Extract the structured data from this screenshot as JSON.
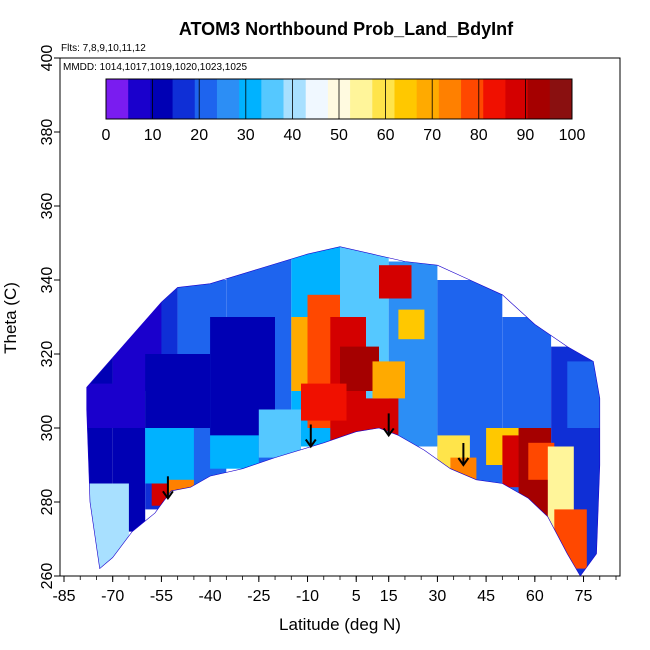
{
  "chart_data": {
    "type": "heatmap",
    "title": "ATOM3 Northbound Prob_Land_BdyInf",
    "subtitle_flights": "Flts: 7,8,9,10,11,12",
    "subtitle_dates": "MMDD: 1014,1017,1019,1020,1023,1025",
    "xlabel": "Latitude (deg N)",
    "ylabel": "Theta (C)",
    "xlim": [
      -85,
      85
    ],
    "ylim": [
      260,
      400
    ],
    "x_ticks": [
      -85,
      -70,
      -55,
      -40,
      -25,
      -10,
      5,
      15,
      30,
      45,
      60,
      75
    ],
    "x_tick_labels": [
      "-85",
      "-70",
      "-55",
      "-40",
      "-25",
      "-10",
      "5",
      "15",
      "30",
      "45",
      "60",
      "75"
    ],
    "y_ticks": [
      260,
      280,
      300,
      320,
      340,
      360,
      380,
      400
    ],
    "y_tick_labels": [
      "260",
      "280",
      "300",
      "320",
      "340",
      "360",
      "380",
      "400"
    ],
    "colorbar": {
      "range": [
        0,
        100
      ],
      "ticks": [
        0,
        10,
        20,
        30,
        40,
        50,
        60,
        70,
        80,
        90,
        100
      ],
      "tick_labels": [
        "0",
        "10",
        "20",
        "30",
        "40",
        "50",
        "60",
        "70",
        "80",
        "90",
        "100"
      ],
      "colors": [
        "#7a1cf0",
        "#1a00cc",
        "#0000b4",
        "#0f2fd6",
        "#1e64ee",
        "#2c8ef5",
        "#00b2ff",
        "#55c8ff",
        "#a8e0ff",
        "#f0f8ff",
        "#fffae0",
        "#fff59a",
        "#ffe44a",
        "#ffc800",
        "#ffaa00",
        "#ff8000",
        "#ff4800",
        "#f01000",
        "#d40000",
        "#a50000",
        "#8a1010"
      ]
    },
    "arrows": [
      {
        "lat": -53,
        "theta": 281
      },
      {
        "lat": -9,
        "theta": 295
      },
      {
        "lat": 15,
        "theta": 298
      },
      {
        "lat": 38,
        "theta": 290
      }
    ],
    "outline_top": [
      [
        -78,
        311
      ],
      [
        -72,
        317
      ],
      [
        -65,
        324
      ],
      [
        -55,
        334
      ],
      [
        -50,
        338
      ],
      [
        -40,
        339
      ],
      [
        -25,
        343
      ],
      [
        -10,
        347
      ],
      [
        0,
        349
      ],
      [
        10,
        347
      ],
      [
        20,
        345
      ],
      [
        30,
        344
      ],
      [
        40,
        340
      ],
      [
        50,
        336
      ],
      [
        60,
        328
      ],
      [
        70,
        322
      ],
      [
        78,
        318
      ],
      [
        80,
        308
      ]
    ],
    "outline_bottom": [
      [
        -78,
        305
      ],
      [
        -77,
        280
      ],
      [
        -74,
        262
      ],
      [
        -70,
        265
      ],
      [
        -64,
        272
      ],
      [
        -57,
        277
      ],
      [
        -52,
        283
      ],
      [
        -46,
        284
      ],
      [
        -40,
        287
      ],
      [
        -30,
        289
      ],
      [
        -20,
        292
      ],
      [
        -5,
        296
      ],
      [
        5,
        299
      ],
      [
        12,
        300
      ],
      [
        18,
        298
      ],
      [
        26,
        294
      ],
      [
        34,
        289
      ],
      [
        42,
        286
      ],
      [
        50,
        285
      ],
      [
        58,
        281
      ],
      [
        64,
        276
      ],
      [
        70,
        266
      ],
      [
        74,
        260
      ],
      [
        79,
        266
      ],
      [
        80,
        290
      ]
    ],
    "regions": [
      {
        "lat": [
          -78,
          -70
        ],
        "theta": [
          262,
          330
        ],
        "value": 12
      },
      {
        "lat": [
          -70,
          -60
        ],
        "theta": [
          272,
          336
        ],
        "value": 8
      },
      {
        "lat": [
          -60,
          -50
        ],
        "theta": [
          278,
          340
        ],
        "value": 14
      },
      {
        "lat": [
          -50,
          -35
        ],
        "theta": [
          284,
          340
        ],
        "value": 20
      },
      {
        "lat": [
          -35,
          -15
        ],
        "theta": [
          290,
          346
        ],
        "value": 18
      },
      {
        "lat": [
          -15,
          0
        ],
        "theta": [
          295,
          349
        ],
        "value": 28
      },
      {
        "lat": [
          0,
          15
        ],
        "theta": [
          298,
          349
        ],
        "value": 35
      },
      {
        "lat": [
          15,
          30
        ],
        "theta": [
          295,
          345
        ],
        "value": 25
      },
      {
        "lat": [
          30,
          50
        ],
        "theta": [
          285,
          340
        ],
        "value": 22
      },
      {
        "lat": [
          50,
          65
        ],
        "theta": [
          278,
          330
        ],
        "value": 18
      },
      {
        "lat": [
          65,
          80
        ],
        "theta": [
          260,
          322
        ],
        "value": 15
      },
      {
        "lat": [
          -78,
          -65
        ],
        "theta": [
          262,
          285
        ],
        "value": 38
      },
      {
        "lat": [
          -70,
          -55
        ],
        "theta": [
          310,
          336
        ],
        "value": 4
      },
      {
        "lat": [
          -78,
          -60
        ],
        "theta": [
          300,
          312
        ],
        "value": 6
      },
      {
        "lat": [
          -60,
          -40
        ],
        "theta": [
          300,
          320
        ],
        "value": 12
      },
      {
        "lat": [
          -40,
          -20
        ],
        "theta": [
          298,
          330
        ],
        "value": 10
      },
      {
        "lat": [
          -60,
          -45
        ],
        "theta": [
          285,
          300
        ],
        "value": 28
      },
      {
        "lat": [
          -58,
          -48
        ],
        "theta": [
          279,
          285
        ],
        "value": 88
      },
      {
        "lat": [
          -53,
          -45
        ],
        "theta": [
          282,
          286
        ],
        "value": 75
      },
      {
        "lat": [
          -40,
          -25
        ],
        "theta": [
          289,
          298
        ],
        "value": 30
      },
      {
        "lat": [
          -25,
          -12
        ],
        "theta": [
          292,
          305
        ],
        "value": 35
      },
      {
        "lat": [
          -15,
          -5
        ],
        "theta": [
          310,
          330
        ],
        "value": 72
      },
      {
        "lat": [
          -10,
          0
        ],
        "theta": [
          300,
          336
        ],
        "value": 80
      },
      {
        "lat": [
          -3,
          8
        ],
        "theta": [
          296,
          330
        ],
        "value": 92
      },
      {
        "lat": [
          0,
          12
        ],
        "theta": [
          310,
          322
        ],
        "value": 96
      },
      {
        "lat": [
          -12,
          2
        ],
        "theta": [
          302,
          312
        ],
        "value": 85
      },
      {
        "lat": [
          5,
          18
        ],
        "theta": [
          298,
          308
        ],
        "value": 90
      },
      {
        "lat": [
          10,
          20
        ],
        "theta": [
          308,
          318
        ],
        "value": 70
      },
      {
        "lat": [
          12,
          22
        ],
        "theta": [
          335,
          344
        ],
        "value": 90
      },
      {
        "lat": [
          18,
          26
        ],
        "theta": [
          324,
          332
        ],
        "value": 65
      },
      {
        "lat": [
          30,
          40
        ],
        "theta": [
          286,
          298
        ],
        "value": 58
      },
      {
        "lat": [
          34,
          42
        ],
        "theta": [
          286,
          292
        ],
        "value": 75
      },
      {
        "lat": [
          45,
          55
        ],
        "theta": [
          290,
          300
        ],
        "value": 65
      },
      {
        "lat": [
          50,
          58
        ],
        "theta": [
          284,
          298
        ],
        "value": 88
      },
      {
        "lat": [
          55,
          65
        ],
        "theta": [
          276,
          300
        ],
        "value": 95
      },
      {
        "lat": [
          58,
          66
        ],
        "theta": [
          286,
          296
        ],
        "value": 80
      },
      {
        "lat": [
          64,
          72
        ],
        "theta": [
          270,
          295
        ],
        "value": 55
      },
      {
        "lat": [
          66,
          76
        ],
        "theta": [
          262,
          278
        ],
        "value": 80
      },
      {
        "lat": [
          70,
          80
        ],
        "theta": [
          300,
          318
        ],
        "value": 20
      }
    ],
    "legend_placement": "colorbar top, inside plot"
  }
}
